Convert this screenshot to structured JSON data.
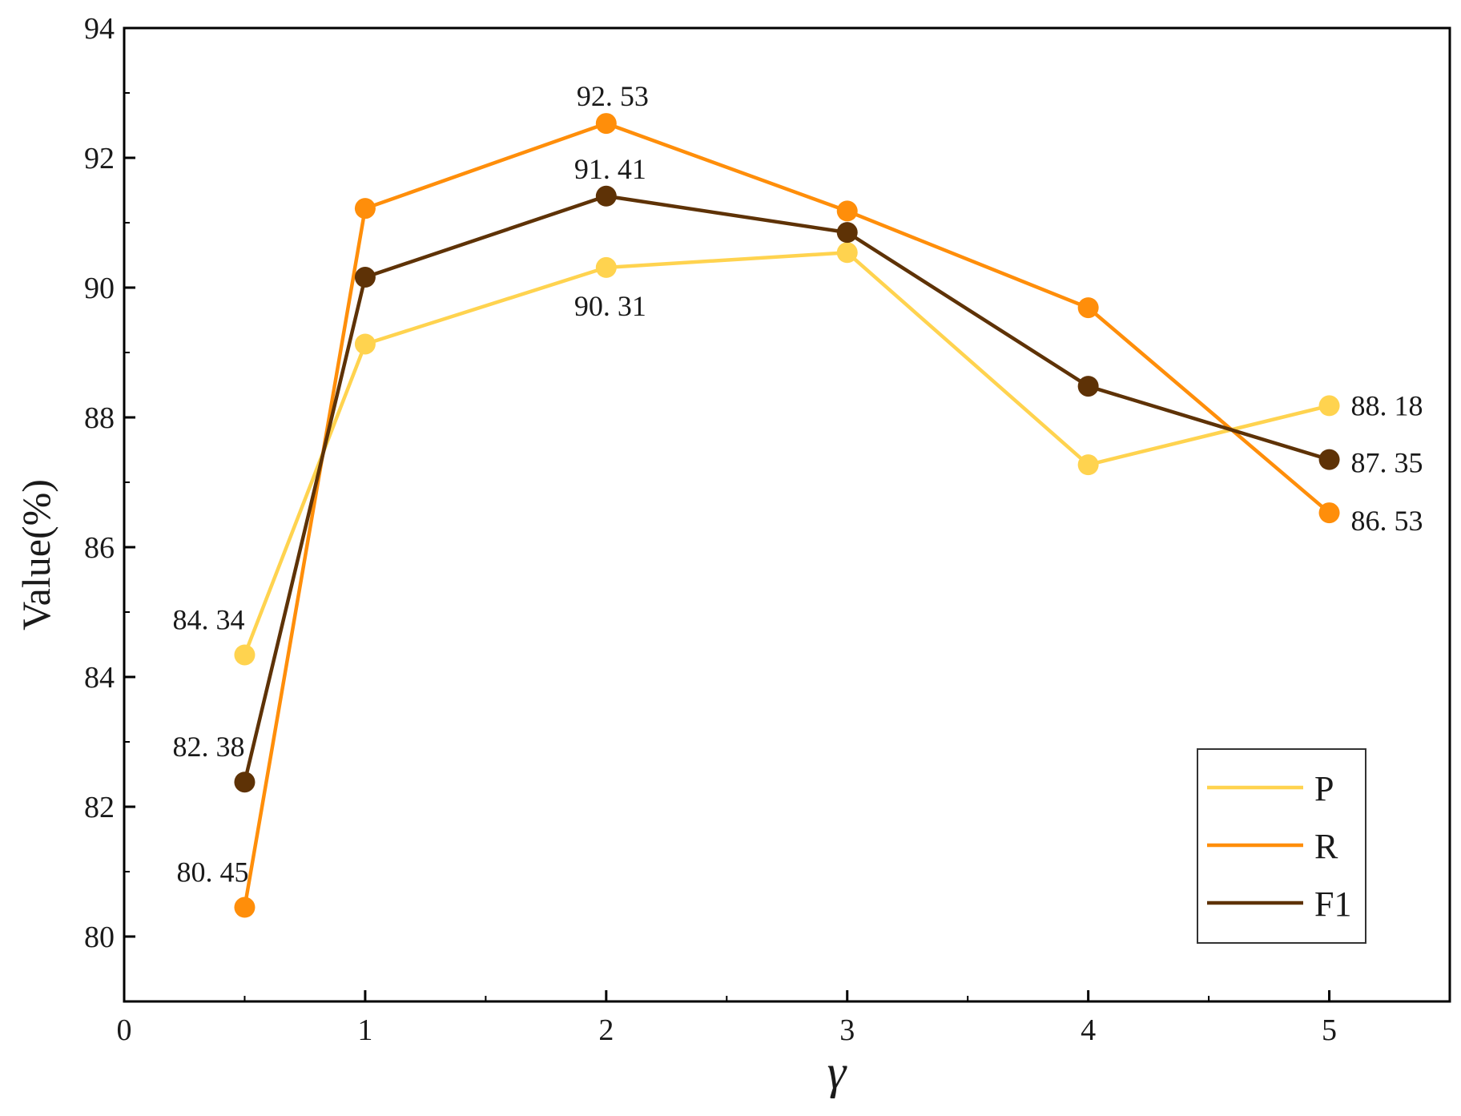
{
  "chart_data": {
    "type": "line",
    "xlabel": "γ",
    "ylabel": "Value(%)",
    "xlim": [
      0,
      5.5
    ],
    "ylim": [
      79,
      94
    ],
    "x_ticks": [
      "0",
      "1",
      "2",
      "3",
      "4",
      "5"
    ],
    "y_ticks": [
      "80",
      "82",
      "84",
      "86",
      "88",
      "90",
      "92",
      "94"
    ],
    "x": [
      0.5,
      1,
      2,
      3,
      4,
      5
    ],
    "series": [
      {
        "name": "P",
        "color": "#FFD34F",
        "values": [
          84.34,
          89.13,
          90.31,
          90.54,
          87.27,
          88.18
        ]
      },
      {
        "name": "R",
        "color": "#FF8E0A",
        "values": [
          80.45,
          91.22,
          92.53,
          91.18,
          89.69,
          86.53
        ]
      },
      {
        "name": "F1",
        "color": "#5E3206",
        "values": [
          82.38,
          90.16,
          91.41,
          90.85,
          88.48,
          87.35
        ]
      }
    ],
    "data_labels": [
      {
        "text": "84. 34",
        "x": 0.5,
        "y": 84.34
      },
      {
        "text": "82. 38",
        "x": 0.5,
        "y": 82.38
      },
      {
        "text": "80. 45",
        "x": 0.5,
        "y": 80.45
      },
      {
        "text": "92. 53",
        "x": 2,
        "y": 92.53
      },
      {
        "text": "91. 41",
        "x": 2,
        "y": 91.41
      },
      {
        "text": "90. 31",
        "x": 2,
        "y": 90.31
      },
      {
        "text": "88. 18",
        "x": 5,
        "y": 88.18
      },
      {
        "text": "87. 35",
        "x": 5,
        "y": 87.35
      },
      {
        "text": "86. 53",
        "x": 5,
        "y": 86.53
      }
    ],
    "legend": {
      "position": "bottom-right",
      "entries": [
        "P",
        "R",
        "F1"
      ]
    },
    "grid": false
  }
}
